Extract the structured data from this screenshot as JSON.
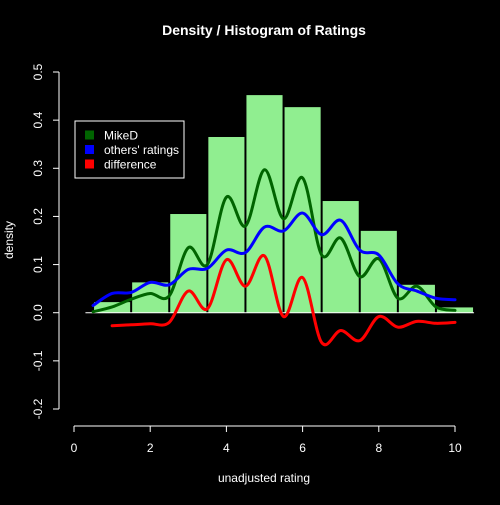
{
  "chart_data": {
    "type": "bar",
    "title": "Density / Histogram of Ratings",
    "xlabel": "unadjusted rating",
    "ylabel": "density",
    "xlim": [
      0,
      10
    ],
    "ylim": [
      -0.2,
      0.5
    ],
    "x_ticks": [
      "0",
      "2",
      "4",
      "6",
      "8",
      "10"
    ],
    "y_ticks": [
      "-0.2",
      "-0.1",
      "0.0",
      "0.1",
      "0.2",
      "0.3",
      "0.4",
      "0.5"
    ],
    "histogram": {
      "bin_starts": [
        0.5,
        1.5,
        2.5,
        3.5,
        4.5,
        5.5,
        6.5,
        7.5,
        8.5,
        9.5
      ],
      "bin_ends": [
        1.5,
        2.5,
        3.5,
        4.5,
        5.5,
        6.5,
        7.5,
        8.5,
        9.5,
        10.5
      ],
      "values": [
        0.022,
        0.063,
        0.205,
        0.365,
        0.452,
        0.427,
        0.232,
        0.17,
        0.058,
        0.011
      ],
      "color": "#90ee90"
    },
    "series": [
      {
        "name": "MikeD",
        "color": "#006400",
        "x": [
          0.5,
          1.0,
          1.5,
          2.0,
          2.5,
          3.0,
          3.5,
          4.0,
          4.5,
          5.0,
          5.5,
          6.0,
          6.5,
          7.0,
          7.5,
          8.0,
          8.5,
          9.0,
          9.5,
          10.0
        ],
        "y": [
          0.002,
          0.012,
          0.028,
          0.04,
          0.035,
          0.135,
          0.1,
          0.24,
          0.18,
          0.297,
          0.195,
          0.28,
          0.12,
          0.155,
          0.075,
          0.112,
          0.03,
          0.055,
          0.012,
          0.005
        ]
      },
      {
        "name": "others' ratings",
        "color": "#0000ff",
        "x": [
          0.5,
          1.0,
          1.5,
          2.0,
          2.5,
          3.0,
          3.5,
          4.0,
          4.5,
          5.0,
          5.5,
          6.0,
          6.5,
          7.0,
          7.5,
          8.0,
          8.5,
          9.0,
          9.5,
          10.0
        ],
        "y": [
          0.015,
          0.04,
          0.042,
          0.063,
          0.058,
          0.09,
          0.092,
          0.13,
          0.125,
          0.178,
          0.17,
          0.207,
          0.162,
          0.192,
          0.13,
          0.12,
          0.06,
          0.045,
          0.03,
          0.027
        ]
      },
      {
        "name": "difference",
        "color": "#ff0000",
        "x": [
          1.0,
          1.5,
          2.0,
          2.5,
          3.0,
          3.5,
          4.0,
          4.5,
          5.0,
          5.5,
          6.0,
          6.5,
          7.0,
          7.5,
          8.0,
          8.5,
          9.0,
          9.5,
          10.0
        ],
        "y": [
          -0.027,
          -0.025,
          -0.023,
          -0.02,
          0.045,
          0.008,
          0.11,
          0.055,
          0.118,
          -0.008,
          0.073,
          -0.062,
          -0.037,
          -0.058,
          -0.008,
          -0.03,
          -0.018,
          -0.022,
          -0.02
        ]
      }
    ],
    "legend": {
      "placement": "top-left",
      "entries": [
        "MikeD",
        "others' ratings",
        "difference"
      ]
    },
    "grid": false
  }
}
